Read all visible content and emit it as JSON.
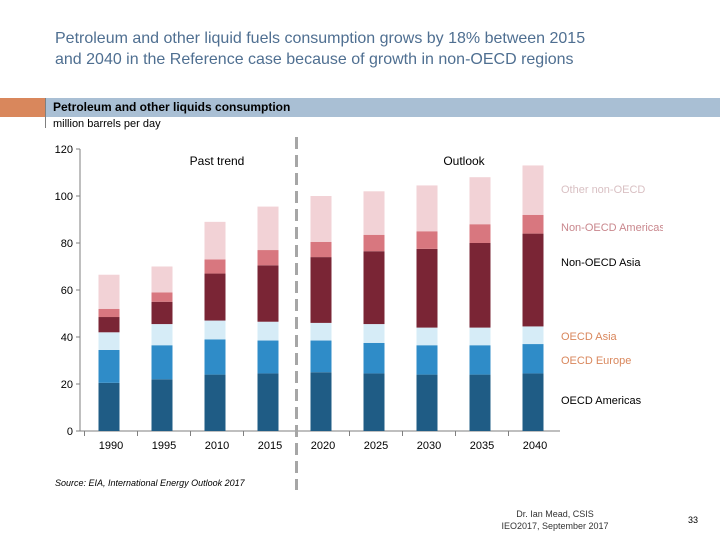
{
  "slide": {
    "title_line1": "Petroleum and other liquid fuels consumption grows by 18% between 2015",
    "title_line2": "and 2040 in the Reference case because of growth in non-OECD regions",
    "source": "Source: EIA, International Energy Outlook 2017",
    "author": "Dr. Ian Mead, CSIS",
    "event": "IEO2017, September 2017",
    "page_number": "33"
  },
  "colors": {
    "band": "#a9bfd4",
    "band_accent": "#d9875c",
    "title": "#4f6f91"
  },
  "chart_data": {
    "type": "stacked-bar",
    "title": "Petroleum and other liquids consumption",
    "ylabel": "million barrels per day",
    "ylim": [
      0,
      120
    ],
    "yticks": [
      0,
      20,
      40,
      60,
      80,
      100,
      120
    ],
    "categories": [
      "1990",
      "1995",
      "2010",
      "2015",
      "2020",
      "2025",
      "2030",
      "2035",
      "2040"
    ],
    "annotations": {
      "history": "Past trend",
      "projection": "Outlook"
    },
    "divider_after": "2015",
    "series": [
      {
        "name": "OECD Americas",
        "color": "#1f5c85",
        "values": [
          20.5,
          22,
          24,
          24.5,
          25,
          24.5,
          24,
          24,
          24.5
        ]
      },
      {
        "name": "OECD Europe",
        "color": "#2f8cc8",
        "values": [
          14,
          14.5,
          15,
          14,
          13.5,
          13,
          12.5,
          12.5,
          12.5
        ]
      },
      {
        "name": "OECD Asia",
        "color": "#d6ecf7",
        "values": [
          7.5,
          9,
          8,
          8,
          7.5,
          8,
          7.5,
          7.5,
          7.5
        ]
      },
      {
        "name": "Non-OECD Asia",
        "color": "#7a2535",
        "values": [
          6.5,
          9.5,
          20,
          24,
          28,
          31,
          33.5,
          36,
          39.5
        ]
      },
      {
        "name": "Non-OECD Americas",
        "color": "#d8777f",
        "values": [
          3.5,
          4,
          6,
          6.5,
          6.5,
          7,
          7.5,
          8,
          8
        ]
      },
      {
        "name": "Other non-OECD",
        "color": "#f2d2d6",
        "values": [
          14.5,
          11,
          16,
          18.5,
          19.5,
          18.5,
          19.5,
          20,
          21
        ]
      }
    ],
    "legend_labels": [
      "Other non-OECD",
      "Non-OECD Americas",
      "Non-OECD Asia",
      "OECD Asia",
      "OECD Europe",
      "OECD Americas"
    ]
  }
}
